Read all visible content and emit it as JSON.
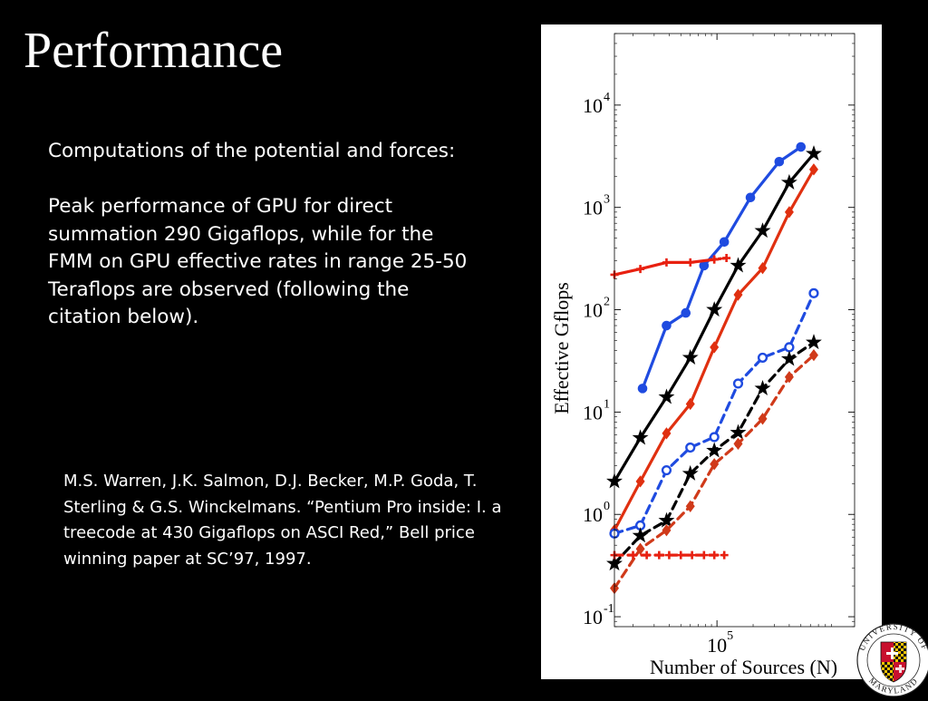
{
  "slide": {
    "title": "Performance",
    "paragraph1": "Computations of the potential and forces:",
    "paragraph2": "Peak performance of GPU for direct summation 290 Gigaflops, while for the FMM on GPU effective rates in range 25-50 Teraflops are observed (following the citation below).",
    "citation": "M.S. Warren, J.K. Salmon, D.J. Becker, M.P. Goda, T. Sterling & G.S. Winckelmans. “Pentium Pro inside: I. a treecode at 430 Gigaflops on ASCI Red,” Bell price winning paper at SC’97, 1997."
  },
  "logo": {
    "text": "UNIVERSITY OF MARYLAND",
    "icon": "maryland-seal-icon"
  },
  "chart_data": {
    "type": "line",
    "title": "",
    "xlabel": "Number of Sources (N)",
    "ylabel": "Effective Gflops",
    "x_scale": "log",
    "y_scale": "log",
    "xlim": [
      14000,
      1400000
    ],
    "ylim": [
      0.08,
      50000
    ],
    "x_ticks": [
      {
        "base": "10",
        "exp": "5",
        "value": 100000
      }
    ],
    "y_ticks": [
      {
        "base": "10",
        "exp": "-1",
        "value": 0.1
      },
      {
        "base": "10",
        "exp": "0",
        "value": 1
      },
      {
        "base": "10",
        "exp": "1",
        "value": 10
      },
      {
        "base": "10",
        "exp": "2",
        "value": 100
      },
      {
        "base": "10",
        "exp": "3",
        "value": 1000
      },
      {
        "base": "10",
        "exp": "4",
        "value": 10000
      }
    ],
    "grid": false,
    "series": [
      {
        "color": "#1f4be0",
        "dash": "solid",
        "marker": "circle-filled",
        "x": [
          24000,
          38000,
          55000,
          78000,
          115000,
          190000,
          330000,
          500000
        ],
        "y": [
          17,
          70,
          93,
          270,
          460,
          1250,
          2800,
          3900
        ]
      },
      {
        "color": "#000000",
        "dash": "solid",
        "marker": "star",
        "x": [
          14000,
          23000,
          38000,
          60000,
          95000,
          150000,
          240000,
          400000,
          640000
        ],
        "y": [
          2.1,
          5.6,
          14,
          34,
          100,
          270,
          590,
          1750,
          3350
        ]
      },
      {
        "color": "#e03010",
        "dash": "solid",
        "marker": "diamond",
        "x": [
          14000,
          23000,
          38000,
          60000,
          95000,
          150000,
          240000,
          400000,
          640000
        ],
        "y": [
          0.7,
          2.1,
          6.2,
          12,
          43,
          140,
          255,
          900,
          2350
        ]
      },
      {
        "color": "#1f4be0",
        "dash": "dashed",
        "marker": "circle-open",
        "x": [
          14000,
          23000,
          38000,
          60000,
          95000,
          150000,
          240000,
          400000,
          640000
        ],
        "y": [
          0.65,
          0.78,
          2.7,
          4.5,
          5.7,
          19,
          34,
          43,
          145
        ]
      },
      {
        "color": "#000000",
        "dash": "dashed",
        "marker": "star",
        "x": [
          14000,
          23000,
          38000,
          60000,
          95000,
          150000,
          240000,
          400000,
          640000
        ],
        "y": [
          0.33,
          0.62,
          0.87,
          2.5,
          4.2,
          6.3,
          17,
          33,
          48
        ]
      },
      {
        "color": "#d03a1a",
        "dash": "dashed",
        "marker": "diamond",
        "x": [
          14000,
          23000,
          38000,
          60000,
          95000,
          150000,
          240000,
          400000,
          640000
        ],
        "y": [
          0.19,
          0.46,
          0.7,
          1.2,
          3.1,
          4.9,
          8.6,
          22,
          36
        ]
      },
      {
        "color": "#e82010",
        "dash": "solid",
        "marker": "plus",
        "x": [
          14000,
          23000,
          38000,
          60000,
          95000
        ],
        "y": [
          220,
          250,
          290,
          290,
          310
        ]
      },
      {
        "color": "#e82010",
        "dash": "dotted",
        "marker": "plus",
        "x": [
          95000,
          120000
        ],
        "y": [
          310,
          320
        ]
      },
      {
        "color": "#e82010",
        "dash": "dashed",
        "marker": "plus",
        "x": [
          14000,
          20000,
          26000,
          33000,
          40000,
          50000,
          62000,
          78000,
          95000,
          115000
        ],
        "y": [
          0.4,
          0.4,
          0.4,
          0.4,
          0.4,
          0.4,
          0.4,
          0.4,
          0.4,
          0.4
        ]
      }
    ]
  }
}
